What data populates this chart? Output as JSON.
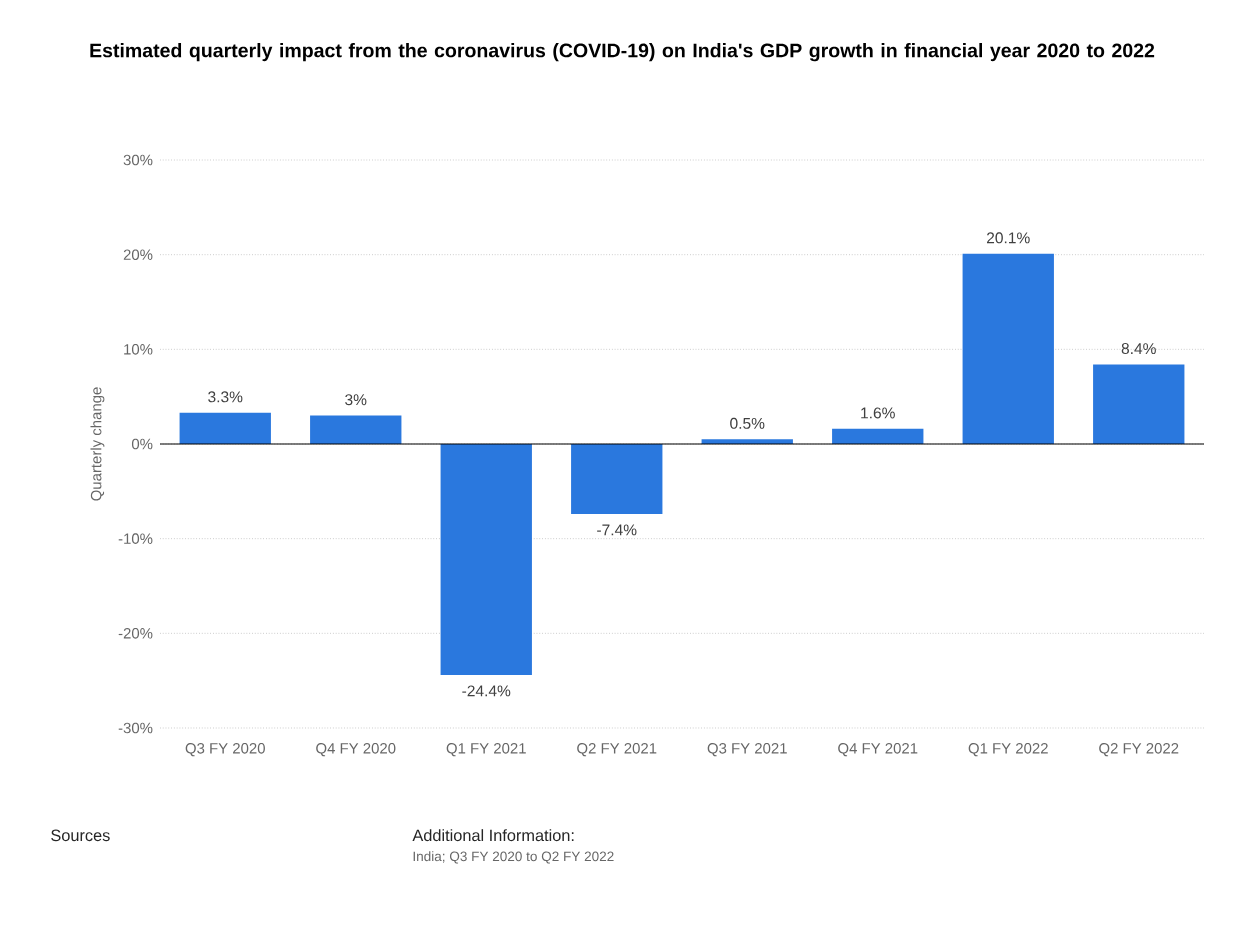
{
  "chart_data": {
    "type": "bar",
    "title": "Estimated quarterly impact from the coronavirus (COVID-19) on India's GDP growth in financial year 2020 to 2022",
    "ylabel": "Quarterly change",
    "categories": [
      "Q3 FY 2020",
      "Q4 FY 2020",
      "Q1 FY 2021",
      "Q2 FY 2021",
      "Q3 FY 2021",
      "Q4 FY 2021",
      "Q1 FY 2022",
      "Q2 FY 2022"
    ],
    "values": [
      3.3,
      3,
      -24.4,
      -7.4,
      0.5,
      1.6,
      20.1,
      8.4
    ],
    "value_labels": [
      "3.3%",
      "3%",
      "-24.4%",
      "-7.4%",
      "0.5%",
      "1.6%",
      "20.1%",
      "8.4%"
    ],
    "color": "#2a78de",
    "ylim": [
      -30,
      30
    ],
    "yticks": [
      {
        "value": -30,
        "label": "-30%"
      },
      {
        "value": -20,
        "label": "-20%"
      },
      {
        "value": -10,
        "label": "-10%"
      },
      {
        "value": 0,
        "label": "0%"
      },
      {
        "value": 10,
        "label": "10%"
      },
      {
        "value": 20,
        "label": "20%"
      },
      {
        "value": 30,
        "label": "30%"
      }
    ],
    "grid": "y",
    "annotations": [
      "Sources",
      "Additional Information:",
      "India; Q3 FY 2020 to Q2 FY 2022"
    ]
  }
}
